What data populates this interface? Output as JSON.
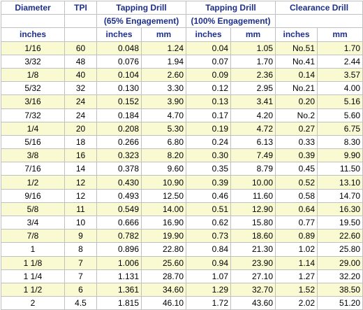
{
  "headers": {
    "diameter": "Diameter",
    "tpi": "TPI",
    "tap65": "Tapping Drill",
    "tap65_sub": "(65% Engagement)",
    "tap100": "Tapping Drill",
    "tap100_sub": "(100% Engagement)",
    "clearance": "Clearance Drill"
  },
  "units": {
    "diameter": "inches",
    "tpi": "",
    "tap65_in": "inches",
    "tap65_mm": "mm",
    "tap100_in": "inches",
    "tap100_mm": "mm",
    "clear_in": "inches",
    "clear_mm": "mm"
  },
  "rows": [
    [
      "1/16",
      "60",
      "0.048",
      "1.24",
      "0.04",
      "1.05",
      "No.51",
      "1.70"
    ],
    [
      "3/32",
      "48",
      "0.076",
      "1.94",
      "0.07",
      "1.70",
      "No.41",
      "2.44"
    ],
    [
      "1/8",
      "40",
      "0.104",
      "2.60",
      "0.09",
      "2.36",
      "0.14",
      "3.57"
    ],
    [
      "5/32",
      "32",
      "0.130",
      "3.30",
      "0.12",
      "2.95",
      "No.21",
      "4.00"
    ],
    [
      "3/16",
      "24",
      "0.152",
      "3.90",
      "0.13",
      "3.41",
      "0.20",
      "5.16"
    ],
    [
      "7/32",
      "24",
      "0.184",
      "4.70",
      "0.17",
      "4.20",
      "No.2",
      "5.60"
    ],
    [
      "1/4",
      "20",
      "0.208",
      "5.30",
      "0.19",
      "4.72",
      "0.27",
      "6.75"
    ],
    [
      "5/16",
      "18",
      "0.266",
      "6.80",
      "0.24",
      "6.13",
      "0.33",
      "8.30"
    ],
    [
      "3/8",
      "16",
      "0.323",
      "8.20",
      "0.30",
      "7.49",
      "0.39",
      "9.90"
    ],
    [
      "7/16",
      "14",
      "0.378",
      "9.60",
      "0.35",
      "8.79",
      "0.45",
      "11.50"
    ],
    [
      "1/2",
      "12",
      "0.430",
      "10.90",
      "0.39",
      "10.00",
      "0.52",
      "13.10"
    ],
    [
      "9/16",
      "12",
      "0.493",
      "12.50",
      "0.46",
      "11.60",
      "0.58",
      "14.70"
    ],
    [
      "5/8",
      "11",
      "0.549",
      "14.00",
      "0.51",
      "12.90",
      "0.64",
      "16.30"
    ],
    [
      "3/4",
      "10",
      "0.666",
      "16.90",
      "0.62",
      "15.80",
      "0.77",
      "19.50"
    ],
    [
      "7/8",
      "9",
      "0.782",
      "19.90",
      "0.73",
      "18.60",
      "0.89",
      "22.60"
    ],
    [
      "1",
      "8",
      "0.896",
      "22.80",
      "0.84",
      "21.30",
      "1.02",
      "25.80"
    ],
    [
      "1 1/8",
      "7",
      "1.006",
      "25.60",
      "0.94",
      "23.90",
      "1.14",
      "29.00"
    ],
    [
      "1 1/4",
      "7",
      "1.131",
      "28.70",
      "1.07",
      "27.10",
      "1.27",
      "32.20"
    ],
    [
      "1 1/2",
      "6",
      "1.361",
      "34.60",
      "1.29",
      "32.70",
      "1.52",
      "38.50"
    ],
    [
      "2",
      "4.5",
      "1.815",
      "46.10",
      "1.72",
      "43.60",
      "2.02",
      "51.20"
    ]
  ],
  "colors": {
    "header_text": "#1c2f8c",
    "row_stripe": "#fafad2",
    "grid": "#c0c0c0"
  }
}
